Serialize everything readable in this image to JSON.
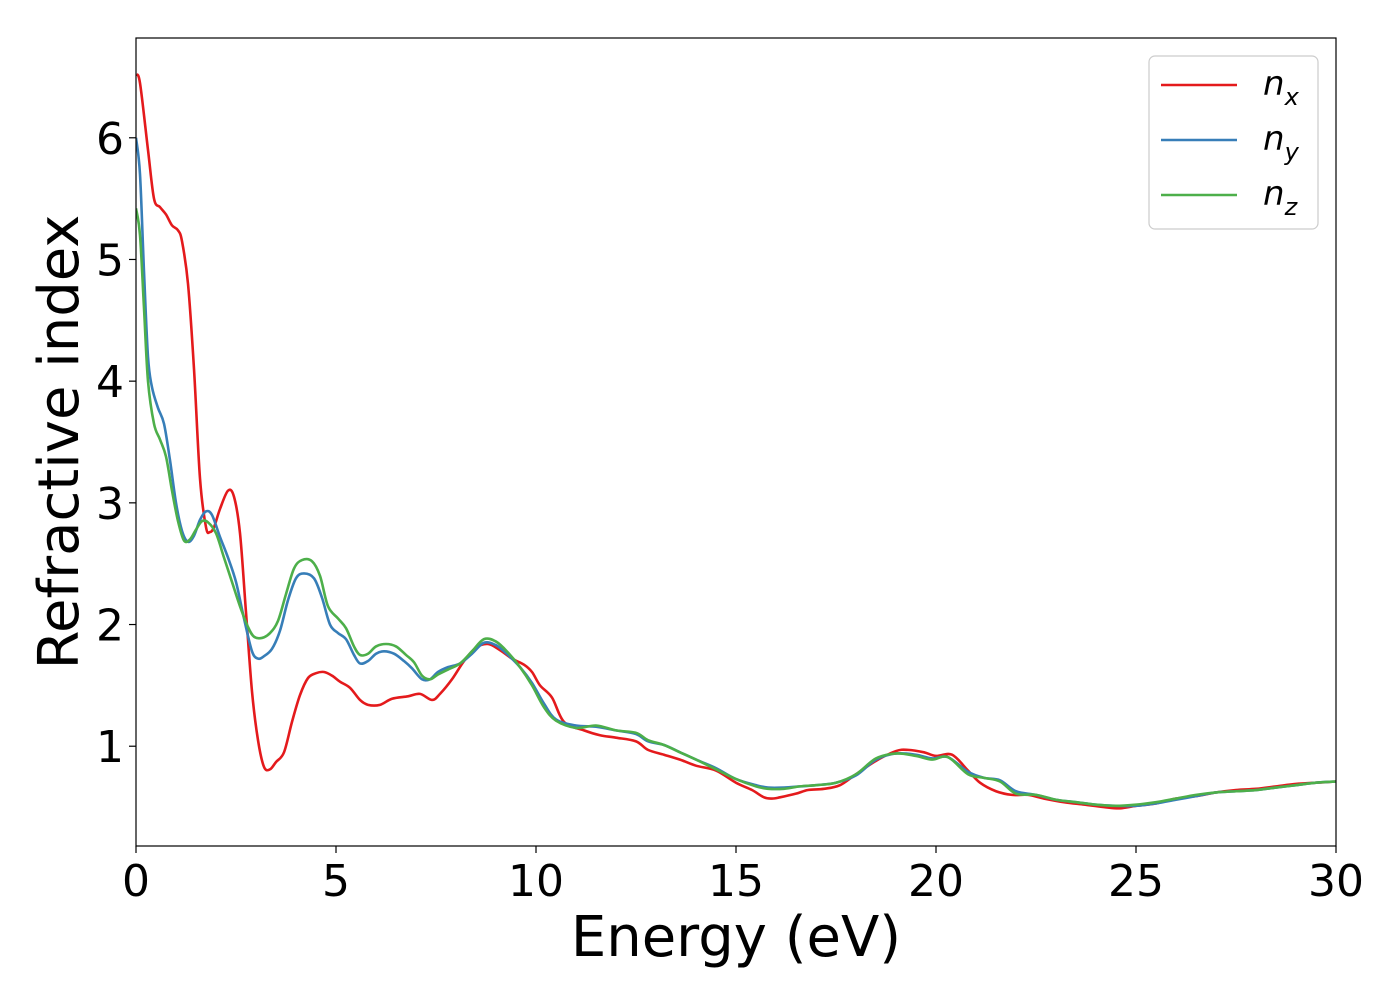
{
  "chart_data": {
    "type": "line",
    "title": "",
    "xlabel": "Energy (eV)",
    "ylabel": "Refractive index",
    "xlim": [
      0,
      30
    ],
    "ylim": [
      0.18,
      6.82
    ],
    "xticks": [
      0,
      5,
      10,
      15,
      20,
      25,
      30
    ],
    "yticks": [
      1,
      2,
      3,
      4,
      5,
      6
    ],
    "grid": false,
    "legend_position": "top-right",
    "series": [
      {
        "name": "n_x",
        "label_base": "n",
        "label_sub": "x",
        "color": "#e41a1c",
        "points": [
          [
            0,
            6.52
          ],
          [
            0.1,
            6.45
          ],
          [
            0.3,
            5.9
          ],
          [
            0.45,
            5.5
          ],
          [
            0.6,
            5.43
          ],
          [
            0.75,
            5.37
          ],
          [
            0.9,
            5.28
          ],
          [
            1.05,
            5.24
          ],
          [
            1.15,
            5.15
          ],
          [
            1.3,
            4.8
          ],
          [
            1.45,
            4.1
          ],
          [
            1.6,
            3.2
          ],
          [
            1.75,
            2.8
          ],
          [
            1.85,
            2.76
          ],
          [
            1.95,
            2.8
          ],
          [
            2.1,
            2.95
          ],
          [
            2.3,
            3.1
          ],
          [
            2.45,
            3.05
          ],
          [
            2.6,
            2.75
          ],
          [
            2.75,
            2.1
          ],
          [
            2.9,
            1.45
          ],
          [
            3.05,
            1.05
          ],
          [
            3.2,
            0.83
          ],
          [
            3.35,
            0.81
          ],
          [
            3.5,
            0.87
          ],
          [
            3.7,
            0.95
          ],
          [
            3.9,
            1.2
          ],
          [
            4.1,
            1.42
          ],
          [
            4.3,
            1.56
          ],
          [
            4.5,
            1.6
          ],
          [
            4.7,
            1.61
          ],
          [
            4.9,
            1.58
          ],
          [
            5.1,
            1.53
          ],
          [
            5.35,
            1.48
          ],
          [
            5.6,
            1.38
          ],
          [
            5.8,
            1.34
          ],
          [
            6.1,
            1.34
          ],
          [
            6.4,
            1.39
          ],
          [
            6.8,
            1.41
          ],
          [
            7.1,
            1.43
          ],
          [
            7.4,
            1.38
          ],
          [
            7.6,
            1.43
          ],
          [
            7.9,
            1.55
          ],
          [
            8.2,
            1.7
          ],
          [
            8.5,
            1.81
          ],
          [
            8.8,
            1.84
          ],
          [
            9.1,
            1.79
          ],
          [
            9.4,
            1.72
          ],
          [
            9.7,
            1.67
          ],
          [
            9.9,
            1.61
          ],
          [
            10.1,
            1.5
          ],
          [
            10.4,
            1.4
          ],
          [
            10.7,
            1.2
          ],
          [
            11.2,
            1.13
          ],
          [
            11.6,
            1.09
          ],
          [
            12.0,
            1.07
          ],
          [
            12.5,
            1.04
          ],
          [
            12.8,
            0.97
          ],
          [
            13.2,
            0.93
          ],
          [
            13.6,
            0.89
          ],
          [
            14.0,
            0.84
          ],
          [
            14.5,
            0.8
          ],
          [
            15.0,
            0.7
          ],
          [
            15.4,
            0.64
          ],
          [
            15.7,
            0.58
          ],
          [
            15.9,
            0.57
          ],
          [
            16.1,
            0.58
          ],
          [
            16.5,
            0.61
          ],
          [
            16.8,
            0.64
          ],
          [
            17.2,
            0.65
          ],
          [
            17.6,
            0.68
          ],
          [
            18.0,
            0.77
          ],
          [
            18.5,
            0.88
          ],
          [
            19.0,
            0.96
          ],
          [
            19.3,
            0.97
          ],
          [
            19.7,
            0.95
          ],
          [
            20.0,
            0.92
          ],
          [
            20.4,
            0.93
          ],
          [
            20.8,
            0.8
          ],
          [
            21.1,
            0.7
          ],
          [
            21.5,
            0.63
          ],
          [
            21.9,
            0.6
          ],
          [
            22.3,
            0.6
          ],
          [
            22.7,
            0.57
          ],
          [
            23.2,
            0.54
          ],
          [
            23.7,
            0.52
          ],
          [
            24.2,
            0.5
          ],
          [
            24.6,
            0.49
          ],
          [
            25.0,
            0.51
          ],
          [
            25.5,
            0.53
          ],
          [
            26.0,
            0.57
          ],
          [
            26.5,
            0.59
          ],
          [
            27.0,
            0.62
          ],
          [
            27.5,
            0.64
          ],
          [
            28.0,
            0.65
          ],
          [
            28.5,
            0.67
          ],
          [
            29.0,
            0.69
          ],
          [
            29.5,
            0.7
          ],
          [
            30.0,
            0.71
          ]
        ]
      },
      {
        "name": "n_y",
        "label_base": "n",
        "label_sub": "y",
        "color": "#377eb8",
        "points": [
          [
            0,
            6.0
          ],
          [
            0.1,
            5.7
          ],
          [
            0.2,
            4.9
          ],
          [
            0.3,
            4.2
          ],
          [
            0.4,
            3.95
          ],
          [
            0.55,
            3.78
          ],
          [
            0.7,
            3.65
          ],
          [
            0.85,
            3.35
          ],
          [
            1.0,
            3.0
          ],
          [
            1.15,
            2.77
          ],
          [
            1.3,
            2.68
          ],
          [
            1.45,
            2.73
          ],
          [
            1.6,
            2.86
          ],
          [
            1.75,
            2.93
          ],
          [
            1.9,
            2.9
          ],
          [
            2.1,
            2.72
          ],
          [
            2.3,
            2.55
          ],
          [
            2.5,
            2.35
          ],
          [
            2.7,
            2.05
          ],
          [
            2.9,
            1.78
          ],
          [
            3.05,
            1.72
          ],
          [
            3.2,
            1.74
          ],
          [
            3.4,
            1.8
          ],
          [
            3.6,
            1.95
          ],
          [
            3.8,
            2.2
          ],
          [
            4.0,
            2.38
          ],
          [
            4.2,
            2.42
          ],
          [
            4.45,
            2.38
          ],
          [
            4.65,
            2.22
          ],
          [
            4.85,
            2.0
          ],
          [
            5.05,
            1.93
          ],
          [
            5.25,
            1.88
          ],
          [
            5.45,
            1.75
          ],
          [
            5.6,
            1.68
          ],
          [
            5.8,
            1.7
          ],
          [
            6.0,
            1.76
          ],
          [
            6.2,
            1.78
          ],
          [
            6.45,
            1.76
          ],
          [
            6.7,
            1.7
          ],
          [
            6.9,
            1.64
          ],
          [
            7.15,
            1.55
          ],
          [
            7.35,
            1.55
          ],
          [
            7.55,
            1.61
          ],
          [
            7.8,
            1.65
          ],
          [
            8.1,
            1.68
          ],
          [
            8.4,
            1.76
          ],
          [
            8.7,
            1.85
          ],
          [
            9.0,
            1.83
          ],
          [
            9.3,
            1.75
          ],
          [
            9.6,
            1.65
          ],
          [
            9.9,
            1.52
          ],
          [
            10.2,
            1.35
          ],
          [
            10.5,
            1.22
          ],
          [
            11.0,
            1.17
          ],
          [
            11.5,
            1.16
          ],
          [
            12.0,
            1.13
          ],
          [
            12.5,
            1.1
          ],
          [
            12.8,
            1.04
          ],
          [
            13.2,
            1.01
          ],
          [
            13.6,
            0.95
          ],
          [
            14.0,
            0.89
          ],
          [
            14.5,
            0.82
          ],
          [
            15.0,
            0.73
          ],
          [
            15.5,
            0.68
          ],
          [
            15.8,
            0.66
          ],
          [
            16.2,
            0.66
          ],
          [
            16.6,
            0.67
          ],
          [
            17.0,
            0.68
          ],
          [
            17.5,
            0.7
          ],
          [
            18.0,
            0.76
          ],
          [
            18.5,
            0.89
          ],
          [
            19.0,
            0.94
          ],
          [
            19.5,
            0.93
          ],
          [
            19.9,
            0.9
          ],
          [
            20.3,
            0.91
          ],
          [
            20.8,
            0.79
          ],
          [
            21.2,
            0.74
          ],
          [
            21.6,
            0.72
          ],
          [
            22.0,
            0.63
          ],
          [
            22.5,
            0.6
          ],
          [
            23.0,
            0.56
          ],
          [
            23.5,
            0.54
          ],
          [
            24.0,
            0.52
          ],
          [
            24.5,
            0.51
          ],
          [
            25.0,
            0.51
          ],
          [
            25.5,
            0.53
          ],
          [
            26.0,
            0.56
          ],
          [
            26.5,
            0.59
          ],
          [
            27.0,
            0.62
          ],
          [
            27.5,
            0.63
          ],
          [
            28.0,
            0.64
          ],
          [
            28.5,
            0.66
          ],
          [
            29.0,
            0.68
          ],
          [
            29.5,
            0.7
          ],
          [
            30.0,
            0.71
          ]
        ]
      },
      {
        "name": "n_z",
        "label_base": "n",
        "label_sub": "z",
        "color": "#4daf4a",
        "points": [
          [
            0,
            5.42
          ],
          [
            0.1,
            5.2
          ],
          [
            0.2,
            4.6
          ],
          [
            0.3,
            4.0
          ],
          [
            0.45,
            3.65
          ],
          [
            0.6,
            3.52
          ],
          [
            0.75,
            3.38
          ],
          [
            0.9,
            3.1
          ],
          [
            1.05,
            2.85
          ],
          [
            1.2,
            2.69
          ],
          [
            1.35,
            2.7
          ],
          [
            1.5,
            2.78
          ],
          [
            1.65,
            2.85
          ],
          [
            1.8,
            2.84
          ],
          [
            2.0,
            2.75
          ],
          [
            2.2,
            2.55
          ],
          [
            2.4,
            2.35
          ],
          [
            2.6,
            2.15
          ],
          [
            2.8,
            1.98
          ],
          [
            2.95,
            1.9
          ],
          [
            3.15,
            1.89
          ],
          [
            3.35,
            1.93
          ],
          [
            3.55,
            2.03
          ],
          [
            3.75,
            2.25
          ],
          [
            3.95,
            2.46
          ],
          [
            4.15,
            2.53
          ],
          [
            4.4,
            2.52
          ],
          [
            4.6,
            2.4
          ],
          [
            4.8,
            2.15
          ],
          [
            5.05,
            2.05
          ],
          [
            5.25,
            1.97
          ],
          [
            5.45,
            1.82
          ],
          [
            5.6,
            1.75
          ],
          [
            5.8,
            1.76
          ],
          [
            6.0,
            1.82
          ],
          [
            6.25,
            1.84
          ],
          [
            6.5,
            1.82
          ],
          [
            6.75,
            1.75
          ],
          [
            6.95,
            1.69
          ],
          [
            7.15,
            1.58
          ],
          [
            7.35,
            1.55
          ],
          [
            7.55,
            1.59
          ],
          [
            7.8,
            1.63
          ],
          [
            8.1,
            1.68
          ],
          [
            8.4,
            1.78
          ],
          [
            8.7,
            1.88
          ],
          [
            9.0,
            1.86
          ],
          [
            9.3,
            1.77
          ],
          [
            9.6,
            1.65
          ],
          [
            9.9,
            1.5
          ],
          [
            10.2,
            1.32
          ],
          [
            10.5,
            1.21
          ],
          [
            11.0,
            1.15
          ],
          [
            11.5,
            1.17
          ],
          [
            12.0,
            1.13
          ],
          [
            12.5,
            1.11
          ],
          [
            12.8,
            1.05
          ],
          [
            13.2,
            1.01
          ],
          [
            13.6,
            0.95
          ],
          [
            14.0,
            0.89
          ],
          [
            14.5,
            0.81
          ],
          [
            15.0,
            0.73
          ],
          [
            15.5,
            0.67
          ],
          [
            15.8,
            0.65
          ],
          [
            16.2,
            0.65
          ],
          [
            16.6,
            0.67
          ],
          [
            17.0,
            0.68
          ],
          [
            17.5,
            0.7
          ],
          [
            18.0,
            0.77
          ],
          [
            18.5,
            0.9
          ],
          [
            19.0,
            0.94
          ],
          [
            19.5,
            0.92
          ],
          [
            19.9,
            0.89
          ],
          [
            20.3,
            0.91
          ],
          [
            20.8,
            0.77
          ],
          [
            21.2,
            0.74
          ],
          [
            21.6,
            0.71
          ],
          [
            22.0,
            0.61
          ],
          [
            22.5,
            0.6
          ],
          [
            23.0,
            0.56
          ],
          [
            23.5,
            0.54
          ],
          [
            24.0,
            0.52
          ],
          [
            24.5,
            0.51
          ],
          [
            25.0,
            0.52
          ],
          [
            25.5,
            0.54
          ],
          [
            26.0,
            0.57
          ],
          [
            26.5,
            0.6
          ],
          [
            27.0,
            0.62
          ],
          [
            27.5,
            0.63
          ],
          [
            28.0,
            0.64
          ],
          [
            28.5,
            0.66
          ],
          [
            29.0,
            0.68
          ],
          [
            29.5,
            0.7
          ],
          [
            30.0,
            0.71
          ]
        ]
      }
    ]
  }
}
